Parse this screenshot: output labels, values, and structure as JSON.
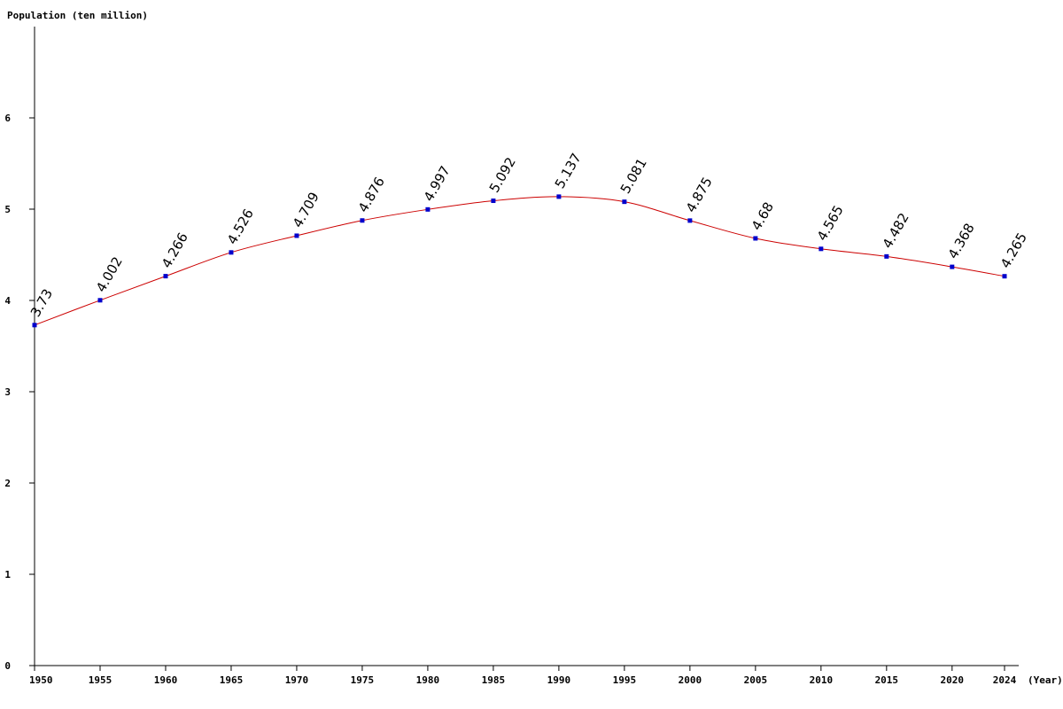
{
  "chart_data": {
    "type": "line",
    "ylabel": "Population (ten million)",
    "xlabel": "(Year)",
    "x": [
      1950,
      1955,
      1960,
      1965,
      1970,
      1975,
      1980,
      1985,
      1990,
      1995,
      2000,
      2005,
      2010,
      2015,
      2020,
      2024
    ],
    "x_tick_labels": [
      "1950",
      "1955",
      "1960",
      "1965",
      "1970",
      "1975",
      "1980",
      "1985",
      "1990",
      "1995",
      "2000",
      "2005",
      "2010",
      "2015",
      "2020",
      "2024"
    ],
    "series": [
      {
        "values": [
          3.73,
          4.002,
          4.266,
          4.526,
          4.709,
          4.876,
          4.997,
          5.092,
          5.137,
          5.081,
          4.875,
          4.68,
          4.565,
          4.482,
          4.368,
          4.265
        ],
        "labels": [
          "3.73",
          "4.002",
          "4.266",
          "4.526",
          "4.709",
          "4.876",
          "4.997",
          "5.092",
          "5.137",
          "5.081",
          "4.875",
          "4.68",
          "4.565",
          "4.482",
          "4.368",
          "4.265"
        ],
        "line_color": "#cc0000",
        "marker_color": "#0000cc"
      }
    ],
    "y_ticks": [
      0,
      1,
      2,
      3,
      4,
      5,
      6
    ],
    "y_tick_labels": [
      "0",
      "1",
      "2",
      "3",
      "4",
      "5",
      "6"
    ],
    "ylim": [
      0,
      7
    ],
    "xlim": [
      1950,
      2024
    ],
    "grid": false,
    "legend": "none"
  }
}
